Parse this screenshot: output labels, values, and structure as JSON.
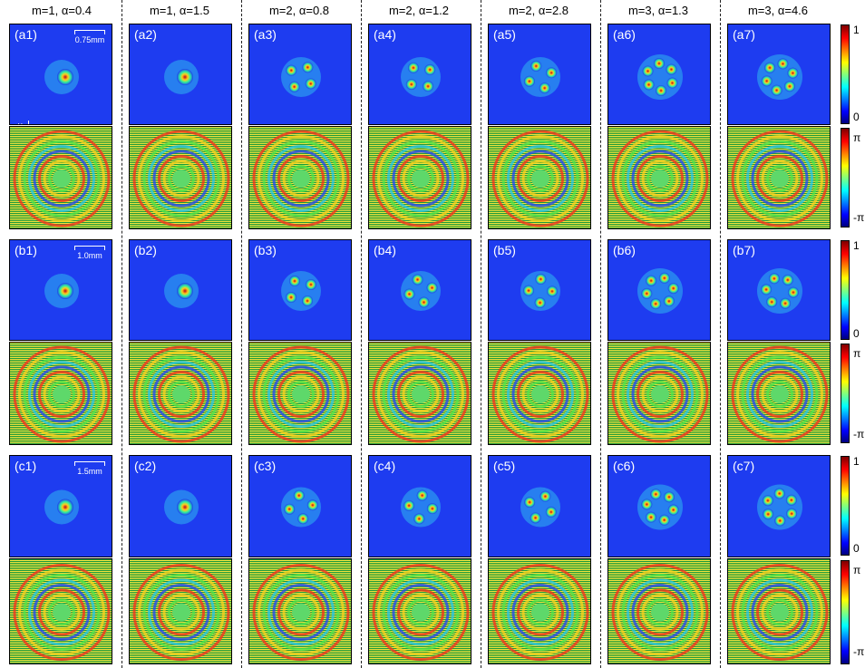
{
  "columns": [
    {
      "title": "m=1, α=0.4"
    },
    {
      "title": "m=1, α=1.5"
    },
    {
      "title": "m=2, α=0.8"
    },
    {
      "title": "m=2, α=1.2"
    },
    {
      "title": "m=2, α=2.8"
    },
    {
      "title": "m=3, α=1.3"
    },
    {
      "title": "m=3, α=4.6"
    }
  ],
  "rows": [
    {
      "labels": [
        "(a1)",
        "(a2)",
        "(a3)",
        "(a4)",
        "(a5)",
        "(a6)",
        "(a7)"
      ],
      "scale": "0.75mm"
    },
    {
      "labels": [
        "(b1)",
        "(b2)",
        "(b3)",
        "(b4)",
        "(b5)",
        "(b6)",
        "(b7)"
      ],
      "scale": "1.0mm"
    },
    {
      "labels": [
        "(c1)",
        "(c2)",
        "(c3)",
        "(c4)",
        "(c5)",
        "(c6)",
        "(c7)"
      ],
      "scale": "1.5mm"
    }
  ],
  "axes": {
    "y": "y",
    "x": "x"
  },
  "colorbar": {
    "amp_max": "1",
    "amp_min": "0",
    "phase_max": "π",
    "phase_min": "-π"
  },
  "colors": {
    "background_blue": "#1e3cf0",
    "phase_green": "#1a9a3c",
    "phase_yellow": "#f5e23c"
  }
}
